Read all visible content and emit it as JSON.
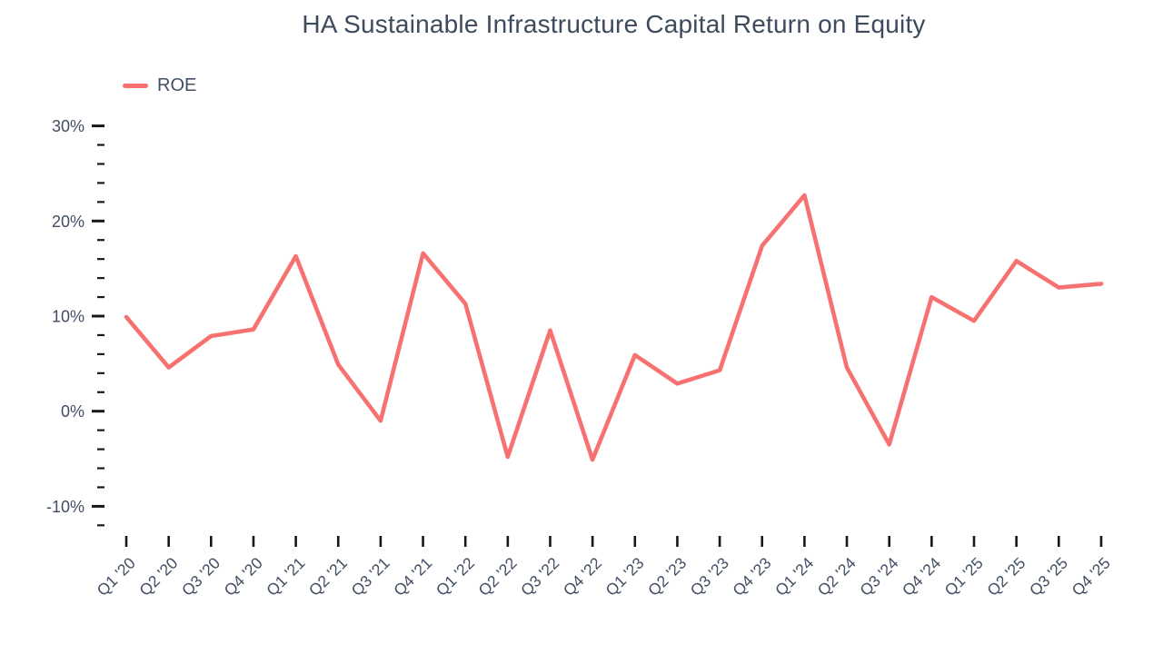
{
  "title": "HA Sustainable Infrastructure Capital Return on Equity",
  "legend": {
    "items": [
      {
        "label": "ROE",
        "color": "#F87171"
      }
    ]
  },
  "colors": {
    "line": "#F87171",
    "title_text": "#3E4A5E",
    "tick_label_text": "#414E63",
    "tick_mark": "#15181D",
    "background": "#FFFFFF"
  },
  "chart_data": {
    "type": "line",
    "title": "HA Sustainable Infrastructure Capital Return on Equity",
    "xlabel": "",
    "ylabel": "",
    "unit": "%",
    "grid": false,
    "legend_position": "top-left",
    "categories": [
      "Q1 '20",
      "Q2 '20",
      "Q3 '20",
      "Q4 '20",
      "Q1 '21",
      "Q2 '21",
      "Q3 '21",
      "Q4 '21",
      "Q1 '22",
      "Q2 '22",
      "Q3 '22",
      "Q4 '22",
      "Q1 '23",
      "Q2 '23",
      "Q3 '23",
      "Q4 '23",
      "Q1 '24",
      "Q2 '24",
      "Q3 '24",
      "Q4 '24",
      "Q1 '25",
      "Q2 '25",
      "Q3 '25",
      "Q4 '25"
    ],
    "series": [
      {
        "name": "ROE",
        "color": "#F87171",
        "values": [
          9.9,
          4.6,
          7.9,
          8.6,
          16.3,
          4.9,
          -1.0,
          16.6,
          11.3,
          -4.8,
          8.5,
          -5.1,
          5.9,
          2.9,
          4.3,
          17.4,
          22.7,
          4.6,
          -3.5,
          12.0,
          9.5,
          15.8,
          13.0,
          13.4
        ]
      }
    ],
    "y_axis": {
      "min": -12,
      "max": 30,
      "minor_step": 2,
      "major_step": 10,
      "major_tick_labels": [
        "30%",
        "20%",
        "10%",
        "0%",
        "-10%"
      ]
    }
  }
}
